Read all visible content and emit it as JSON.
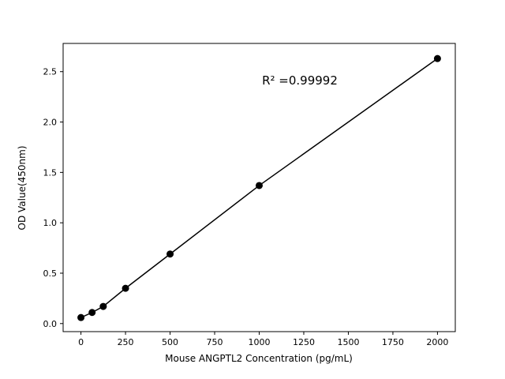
{
  "chart_data": {
    "type": "scatter",
    "title": "",
    "xlabel": "Mouse ANGPTL2 Concentration (pg/mL)",
    "ylabel": "OD Value(450nm)",
    "annotation": "R² =0.99992",
    "x": [
      0,
      62.5,
      125,
      250,
      500,
      1000,
      2000
    ],
    "y": [
      0.06,
      0.11,
      0.17,
      0.35,
      0.69,
      1.37,
      2.63
    ],
    "xticks": [
      0,
      250,
      500,
      750,
      1000,
      1250,
      1500,
      1750,
      2000
    ],
    "yticks": [
      0.0,
      0.5,
      1.0,
      1.5,
      2.0,
      2.5
    ],
    "xlim": [
      -100,
      2100
    ],
    "ylim": [
      -0.08,
      2.78
    ],
    "grid": false,
    "legend": "none",
    "line": true,
    "marker_color": "#000000",
    "line_color": "#000000",
    "background_color": "#ffffff"
  }
}
